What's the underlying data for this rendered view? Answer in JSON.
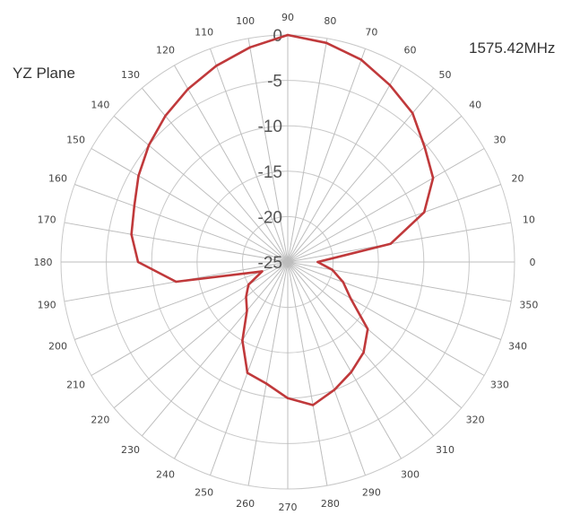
{
  "labels": {
    "plane": "YZ Plane",
    "frequency": "1575.42MHz"
  },
  "colors": {
    "pattern": "#c0393b",
    "grid": "#c8c8c8",
    "spokes": "#bdbdbd"
  },
  "chart_data": {
    "type": "polar-line",
    "title": "1575.42MHz",
    "subtitle": "YZ Plane",
    "radial_ticks": [
      "0",
      "-5",
      "-10",
      "-15",
      "-20",
      "-25"
    ],
    "radial_values": [
      0,
      -5,
      -10,
      -15,
      -20,
      -25
    ],
    "angle_ticks": [
      "0",
      "10",
      "20",
      "30",
      "40",
      "50",
      "60",
      "70",
      "80",
      "90",
      "100",
      "110",
      "120",
      "130",
      "140",
      "150",
      "160",
      "170",
      "180",
      "190",
      "200",
      "210",
      "220",
      "230",
      "240",
      "250",
      "260",
      "270",
      "280",
      "290",
      "300",
      "310",
      "320",
      "330",
      "340",
      "350"
    ],
    "rlim": [
      -25,
      0
    ],
    "grid": true,
    "series": [
      {
        "angles": [
          0,
          10,
          20,
          30,
          40,
          50,
          60,
          70,
          80,
          90,
          100,
          110,
          120,
          130,
          140,
          150,
          160,
          170,
          180,
          190,
          200,
          210,
          220,
          230,
          240,
          250,
          260,
          270,
          280,
          290,
          300,
          310,
          320,
          330,
          340,
          350
        ],
        "values": [
          -21.7,
          -13.5,
          -9,
          -6.5,
          -5.3,
          -3.6,
          -2.5,
          -1.3,
          -0.5,
          0,
          -1,
          -2,
          -3,
          -4,
          -5,
          -6,
          -7,
          -7.5,
          -8.5,
          -12.5,
          -22,
          -20,
          -19,
          -18,
          -15,
          -12,
          -11.4,
          -10,
          -9,
          -10,
          -11,
          -12,
          -13.5,
          -17,
          -18.5,
          -20
        ]
      }
    ]
  }
}
